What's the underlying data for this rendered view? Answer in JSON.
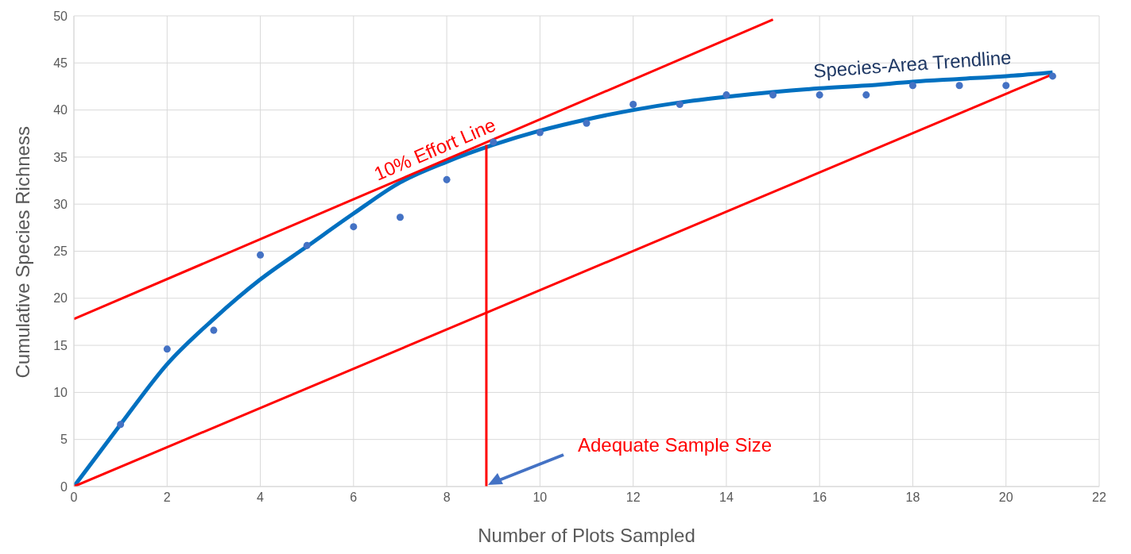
{
  "chart_data": {
    "type": "scatter",
    "xlabel": "Number of Plots Sampled",
    "ylabel": "Cumulative Species Richness",
    "xlim": [
      0,
      22
    ],
    "xticks": [
      0,
      2,
      4,
      6,
      8,
      10,
      12,
      14,
      16,
      18,
      20,
      22
    ],
    "ylim": [
      0,
      50
    ],
    "yticks": [
      0,
      5,
      10,
      15,
      20,
      25,
      30,
      35,
      40,
      45,
      50
    ],
    "grid": true,
    "legend": false,
    "series": [
      {
        "type": "scatter",
        "color": "#4472c4",
        "marker": "circle",
        "x": [
          1,
          2,
          3,
          4,
          5,
          6,
          7,
          8,
          9,
          10,
          11,
          12,
          13,
          14,
          15,
          16,
          17,
          18,
          19,
          20,
          21
        ],
        "values": [
          6.6,
          14.6,
          16.6,
          24.6,
          25.6,
          27.6,
          28.6,
          32.6,
          36.6,
          37.6,
          38.6,
          40.6,
          40.6,
          41.6,
          41.6,
          41.6,
          41.6,
          42.6,
          42.6,
          42.6,
          43.6
        ]
      },
      {
        "type": "line",
        "name": "Species-Area Trendline",
        "color": "#0070c0",
        "marker": "none",
        "line_style": "solid",
        "x": [
          0,
          1,
          2,
          3,
          4,
          5,
          6,
          7,
          8,
          9,
          10,
          11,
          12,
          13,
          14,
          15,
          16,
          17,
          18,
          19,
          20,
          21
        ],
        "values": [
          0,
          6.6,
          13,
          17.8,
          22,
          25.5,
          29,
          32.3,
          34.5,
          36.3,
          37.8,
          39,
          40,
          40.8,
          41.4,
          41.9,
          42.3,
          42.6,
          43,
          43.3,
          43.6,
          44
        ]
      },
      {
        "type": "line",
        "name": "10% Effort Line",
        "color": "#ff0000",
        "marker": "none",
        "line_style": "solid",
        "x": [
          0,
          15
        ],
        "values": [
          17.8,
          49.6
        ]
      },
      {
        "type": "line",
        "color": "#ff0000",
        "marker": "none",
        "line_style": "solid",
        "x": [
          0,
          21
        ],
        "values": [
          0,
          43.8
        ]
      },
      {
        "type": "line",
        "color": "#ff0000",
        "marker": "none",
        "line_style": "solid",
        "x": [
          8.85,
          8.85
        ],
        "values": [
          0,
          36.3
        ]
      }
    ],
    "annotations": [
      "Adequate Sample Size"
    ]
  }
}
